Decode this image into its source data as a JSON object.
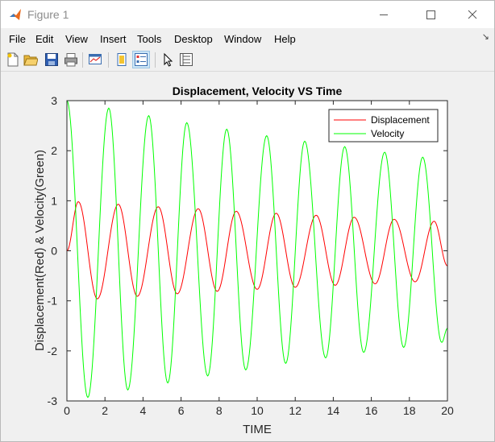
{
  "window": {
    "title": "Figure 1"
  },
  "menu": [
    "File",
    "Edit",
    "View",
    "Insert",
    "Tools",
    "Desktop",
    "Window",
    "Help"
  ],
  "toolbar": [
    "new-figure",
    "open-file",
    "save",
    "print",
    "link-plot",
    "hide-plot-tools",
    "show-plot-tools",
    "edit-plot",
    "property-inspector"
  ],
  "chart_data": {
    "type": "line",
    "title": "Displacement, Velocity VS Time",
    "xlabel": "TIME",
    "ylabel": "Displacement(Red) & Velocity(Green)",
    "xlim": [
      0,
      20
    ],
    "ylim": [
      -3,
      3
    ],
    "xticks": [
      "0",
      "2",
      "4",
      "6",
      "8",
      "10",
      "12",
      "14",
      "16",
      "18",
      "20"
    ],
    "yticks": [
      "3",
      "2",
      "1",
      "0",
      "-1",
      "-2",
      "-3"
    ],
    "legend_position": "top-right",
    "grid": false,
    "x_range": [
      0,
      20
    ],
    "series": [
      {
        "name": "Displacement",
        "color": "#ff0000",
        "peaks": [
          [
            0.6,
            0.98
          ],
          [
            2.7,
            0.93
          ],
          [
            4.8,
            0.88
          ],
          [
            6.9,
            0.84
          ],
          [
            8.9,
            0.79
          ],
          [
            11.0,
            0.75
          ],
          [
            13.1,
            0.71
          ],
          [
            15.1,
            0.67
          ],
          [
            17.2,
            0.63
          ],
          [
            19.3,
            0.59
          ]
        ],
        "troughs": [
          [
            1.6,
            -0.96
          ],
          [
            3.7,
            -0.91
          ],
          [
            5.8,
            -0.86
          ],
          [
            7.9,
            -0.81
          ],
          [
            10.0,
            -0.77
          ],
          [
            12.0,
            -0.73
          ],
          [
            14.1,
            -0.69
          ],
          [
            16.2,
            -0.66
          ],
          [
            18.3,
            -0.62
          ]
        ],
        "end_value": -0.3
      },
      {
        "name": "Velocity",
        "color": "#00ff00",
        "peaks": [
          [
            0.0,
            3.0
          ],
          [
            2.2,
            2.85
          ],
          [
            4.3,
            2.7
          ],
          [
            6.3,
            2.56
          ],
          [
            8.4,
            2.43
          ],
          [
            10.5,
            2.3
          ],
          [
            12.5,
            2.19
          ],
          [
            14.6,
            2.08
          ],
          [
            16.7,
            1.97
          ],
          [
            18.7,
            1.87
          ]
        ],
        "troughs": [
          [
            1.1,
            -2.93
          ],
          [
            3.2,
            -2.78
          ],
          [
            5.3,
            -2.64
          ],
          [
            7.4,
            -2.5
          ],
          [
            9.4,
            -2.38
          ],
          [
            11.5,
            -2.25
          ],
          [
            13.6,
            -2.14
          ],
          [
            15.6,
            -2.03
          ],
          [
            17.7,
            -1.93
          ],
          [
            19.7,
            -1.83
          ]
        ],
        "end_value": -1.55
      }
    ]
  }
}
